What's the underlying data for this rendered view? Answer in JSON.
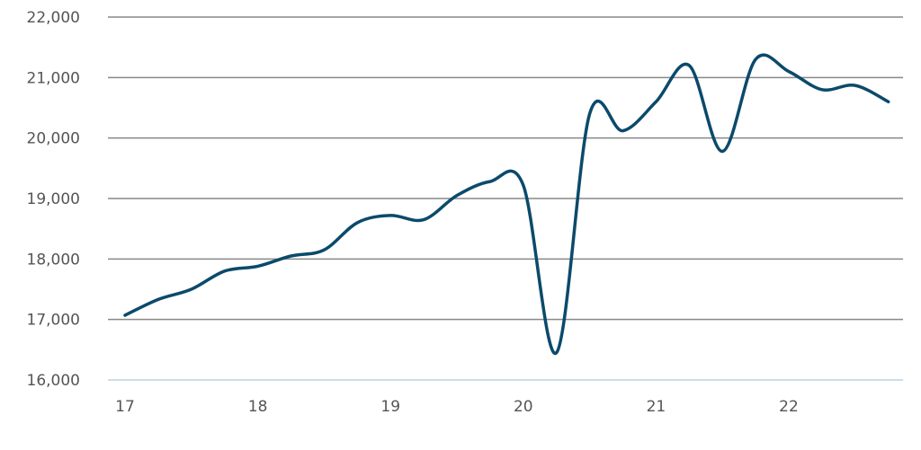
{
  "chart_data": {
    "type": "line",
    "title": "",
    "xlabel": "",
    "ylabel": "",
    "x_ticks": [
      "17",
      "18",
      "19",
      "20",
      "21",
      "22"
    ],
    "y_ticks": [
      "16,000",
      "17,000",
      "18,000",
      "19,000",
      "20,000",
      "21,000",
      "22,000"
    ],
    "xlim": [
      17,
      22.85
    ],
    "ylim": [
      16000,
      22000
    ],
    "grid": true,
    "legend": "none",
    "colors": {
      "line": "#0b4a6b",
      "grid": "#888888",
      "axis": "#bcd3e3",
      "text": "#555555"
    },
    "series": [
      {
        "x": [
          17.0,
          17.25,
          17.5,
          17.75,
          18.0,
          18.25,
          18.5,
          18.75,
          19.0,
          19.25,
          19.5,
          19.75,
          20.0,
          20.25,
          20.5,
          20.75,
          21.0,
          21.25,
          21.5,
          21.75,
          22.0,
          22.25,
          22.5,
          22.75
        ],
        "values": [
          17070,
          17330,
          17500,
          17800,
          17880,
          18050,
          18150,
          18600,
          18720,
          18650,
          19050,
          19280,
          19220,
          16450,
          20400,
          20120,
          20600,
          21200,
          19780,
          21300,
          21100,
          20800,
          20870,
          20600
        ]
      }
    ]
  }
}
